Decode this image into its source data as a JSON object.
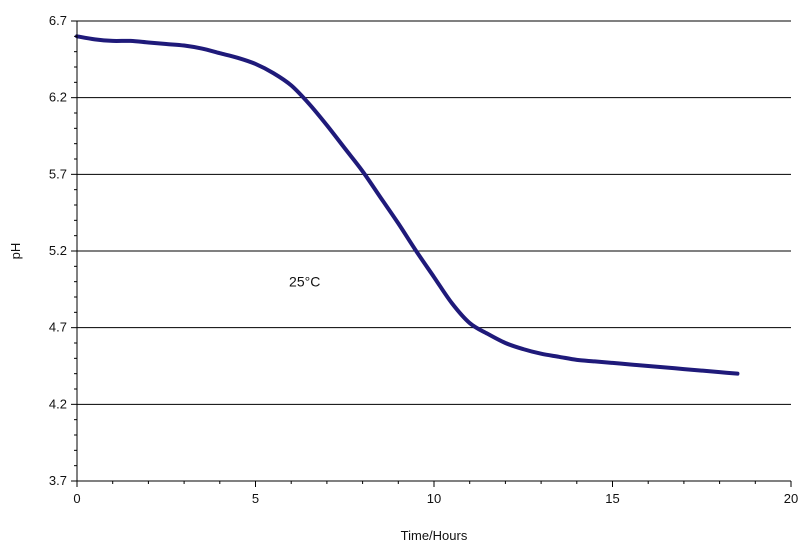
{
  "chart_data": {
    "type": "line",
    "title": "",
    "xlabel": "Time/Hours",
    "ylabel": "pH",
    "xlim": [
      0,
      20
    ],
    "ylim": [
      3.7,
      6.7
    ],
    "x_ticks": [
      0,
      5,
      10,
      15,
      20
    ],
    "y_ticks": [
      3.7,
      4.2,
      4.7,
      5.2,
      5.7,
      6.2,
      6.7
    ],
    "grid": "horizontal",
    "legend": "none",
    "annotations": [
      {
        "text": "25°C",
        "x": 7.2,
        "y": 5.0
      }
    ],
    "series": [
      {
        "color": "#1f1a7a",
        "x": [
          0,
          0.5,
          1,
          1.5,
          2,
          2.5,
          3,
          3.5,
          4,
          4.5,
          5,
          5.5,
          6,
          6.5,
          7,
          7.5,
          8,
          8.5,
          9,
          9.5,
          10,
          10.5,
          11,
          11.5,
          12,
          12.5,
          13,
          13.5,
          14,
          14.5,
          15,
          15.5,
          16,
          16.5,
          17,
          17.5,
          18,
          18.5
        ],
        "y": [
          6.6,
          6.58,
          6.57,
          6.57,
          6.56,
          6.55,
          6.54,
          6.52,
          6.49,
          6.46,
          6.42,
          6.36,
          6.28,
          6.16,
          6.02,
          5.87,
          5.72,
          5.55,
          5.38,
          5.2,
          5.03,
          4.86,
          4.73,
          4.66,
          4.6,
          4.56,
          4.53,
          4.51,
          4.49,
          4.48,
          4.47,
          4.46,
          4.45,
          4.44,
          4.43,
          4.42,
          4.41,
          4.4
        ]
      }
    ]
  }
}
